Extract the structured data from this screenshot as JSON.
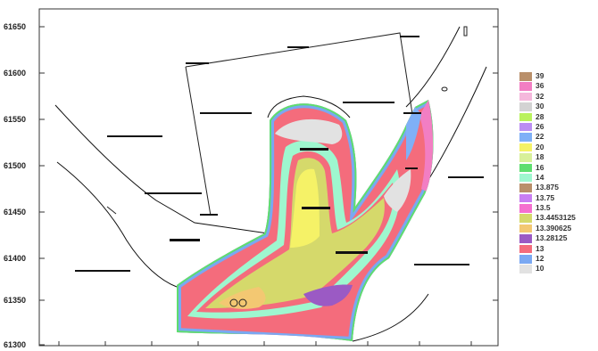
{
  "y_axis_labels": [
    "61650",
    "61600",
    "61550",
    "61500",
    "61450",
    "61400",
    "61350",
    "61300"
  ],
  "legend": [
    {
      "label": "39",
      "color": "#b98f6a"
    },
    {
      "label": "36",
      "color": "#f27ec3"
    },
    {
      "label": "32",
      "color": "#f5b8dc"
    },
    {
      "label": "30",
      "color": "#d3d3d3"
    },
    {
      "label": "28",
      "color": "#b9f25c"
    },
    {
      "label": "26",
      "color": "#bb8ef2"
    },
    {
      "label": "22",
      "color": "#7fb0f7"
    },
    {
      "label": "20",
      "color": "#f5f267"
    },
    {
      "label": "18",
      "color": "#d8f09a"
    },
    {
      "label": "16",
      "color": "#5ede6f"
    },
    {
      "label": "14",
      "color": "#9ef7cf"
    },
    {
      "label": "13.875",
      "color": "#b98f6a"
    },
    {
      "label": "13.75",
      "color": "#c87ef2"
    },
    {
      "label": "13.5",
      "color": "#f56fcf"
    },
    {
      "label": "13.4453125",
      "color": "#d5d96b"
    },
    {
      "label": "13.390625",
      "color": "#f3c872"
    },
    {
      "label": "13.28125",
      "color": "#9b5ac4"
    },
    {
      "label": "13",
      "color": "#f46c7c"
    },
    {
      "label": "12",
      "color": "#7aa8f2"
    },
    {
      "label": "10",
      "color": "#e2e2e2"
    }
  ]
}
